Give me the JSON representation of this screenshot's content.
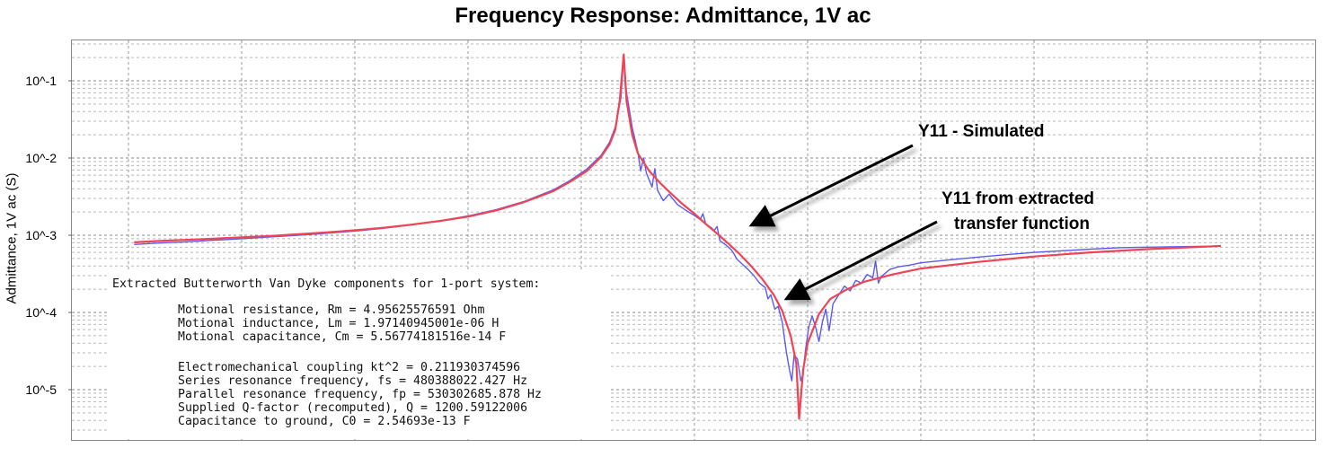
{
  "chart_data": {
    "type": "line",
    "title": "Frequency Response: Admittance, 1V ac",
    "ylabel": "Admittance, 1V ac (S)",
    "xlabel": "",
    "yscale": "log",
    "ylim": [
      4e-06,
      0.25
    ],
    "ytick_labels": [
      "10^-1",
      "10^-2",
      "10^-3",
      "10^-4",
      "10^-5"
    ],
    "ytick_values": [
      0.1,
      0.01,
      0.001,
      0.0001,
      1e-05
    ],
    "grid": true,
    "series": [
      {
        "name": "Y11 - Simulated",
        "color": "#5b5bf0",
        "points": [
          [
            0.1,
            0.00076
          ],
          [
            0.5,
            0.00079
          ],
          [
            1,
            0.00082
          ],
          [
            1.5,
            0.00086
          ],
          [
            2,
            0.0009
          ],
          [
            2.5,
            0.00095
          ],
          [
            3,
            0.001
          ],
          [
            3.5,
            0.00106
          ],
          [
            4,
            0.00113
          ],
          [
            4.5,
            0.00123
          ],
          [
            5,
            0.00136
          ],
          [
            5.5,
            0.00153
          ],
          [
            6,
            0.00178
          ],
          [
            6.5,
            0.00215
          ],
          [
            7,
            0.00275
          ],
          [
            7.5,
            0.00385
          ],
          [
            7.8,
            0.0051
          ],
          [
            8.1,
            0.0072
          ],
          [
            8.35,
            0.0108
          ],
          [
            8.5,
            0.016
          ],
          [
            8.6,
            0.025
          ],
          [
            8.7,
            0.06
          ],
          [
            8.75,
            0.2
          ],
          [
            8.8,
            0.07
          ],
          [
            8.9,
            0.025
          ],
          [
            9,
            0.012
          ],
          [
            9.05,
            0.0068
          ],
          [
            9.1,
            0.01
          ],
          [
            9.15,
            0.0064
          ],
          [
            9.25,
            0.0042
          ],
          [
            9.3,
            0.0073
          ],
          [
            9.35,
            0.0038
          ],
          [
            9.45,
            0.0028
          ],
          [
            9.55,
            0.0034
          ],
          [
            9.7,
            0.0025
          ],
          [
            9.85,
            0.0021
          ],
          [
            10,
            0.0018
          ],
          [
            10.1,
            0.0016
          ],
          [
            10.15,
            0.0019
          ],
          [
            10.2,
            0.0014
          ],
          [
            10.3,
            0.00125
          ],
          [
            10.35,
            0.00115
          ],
          [
            10.4,
            0.0013
          ],
          [
            10.45,
            0.00085
          ],
          [
            10.5,
            0.0008
          ],
          [
            10.55,
            0.00075
          ],
          [
            10.65,
            0.00065
          ],
          [
            10.7,
            0.00057
          ],
          [
            10.75,
            0.00049
          ],
          [
            10.85,
            0.00042
          ],
          [
            10.95,
            0.00036
          ],
          [
            11.05,
            0.0003
          ],
          [
            11.15,
            0.00024
          ],
          [
            11.25,
            0.00021
          ],
          [
            11.3,
            0.00015
          ],
          [
            11.35,
            0.00017
          ],
          [
            11.42,
            0.00011
          ],
          [
            11.48,
            0.00012
          ],
          [
            11.55,
            7.5e-05
          ],
          [
            11.62,
            3.2e-05
          ],
          [
            11.68,
            1.8e-05
          ],
          [
            11.72,
            1.3e-05
          ],
          [
            11.76,
            2.8e-05
          ],
          [
            11.82,
            2.5e-05
          ],
          [
            11.88,
            1.3e-05
          ],
          [
            11.92,
            1.6e-05
          ],
          [
            11.96,
            3.2e-05
          ],
          [
            12.02,
            6.5e-05
          ],
          [
            12.08,
            9e-05
          ],
          [
            12.14,
            6.5e-05
          ],
          [
            12.2,
            4.2e-05
          ],
          [
            12.26,
            7.5e-05
          ],
          [
            12.32,
            0.00011
          ],
          [
            12.38,
            5.8e-05
          ],
          [
            12.45,
            0.00013
          ],
          [
            12.55,
            0.00017
          ],
          [
            12.65,
            0.00022
          ],
          [
            12.75,
            0.00019
          ],
          [
            12.85,
            0.00026
          ],
          [
            12.95,
            0.00024
          ],
          [
            13.05,
            0.00031
          ],
          [
            13.15,
            0.00028
          ],
          [
            13.2,
            0.00046
          ],
          [
            13.25,
            0.00024
          ],
          [
            13.3,
            0.00029
          ],
          [
            13.45,
            0.00036
          ],
          [
            13.6,
            0.00039
          ],
          [
            13.8,
            0.00041
          ],
          [
            14,
            0.00044
          ],
          [
            14.5,
            0.00048
          ],
          [
            15,
            0.00052
          ],
          [
            15.5,
            0.00056
          ],
          [
            16,
            0.0006
          ],
          [
            16.5,
            0.00063
          ],
          [
            17,
            0.00066
          ],
          [
            17.5,
            0.00069
          ],
          [
            18,
            0.0007
          ],
          [
            18.5,
            0.00071
          ],
          [
            19,
            0.00072
          ],
          [
            19.3,
            0.00072
          ]
        ]
      },
      {
        "name": "Y11 from extracted transfer function",
        "color": "#ee4455",
        "points": [
          [
            0.1,
            0.00081
          ],
          [
            0.5,
            0.00084
          ],
          [
            1,
            0.00087
          ],
          [
            1.5,
            0.0009
          ],
          [
            2,
            0.00094
          ],
          [
            2.5,
            0.00098
          ],
          [
            3,
            0.00103
          ],
          [
            3.5,
            0.00109
          ],
          [
            4,
            0.00116
          ],
          [
            4.5,
            0.00125
          ],
          [
            5,
            0.00137
          ],
          [
            5.5,
            0.00153
          ],
          [
            6,
            0.00174
          ],
          [
            6.5,
            0.0021
          ],
          [
            7,
            0.0027
          ],
          [
            7.5,
            0.0037
          ],
          [
            7.8,
            0.0049
          ],
          [
            8.1,
            0.0068
          ],
          [
            8.35,
            0.0103
          ],
          [
            8.5,
            0.015
          ],
          [
            8.6,
            0.023
          ],
          [
            8.68,
            0.055
          ],
          [
            8.75,
            0.22
          ],
          [
            8.8,
            0.055
          ],
          [
            8.9,
            0.02
          ],
          [
            9,
            0.0115
          ],
          [
            9.2,
            0.0068
          ],
          [
            9.4,
            0.0047
          ],
          [
            9.6,
            0.0034
          ],
          [
            9.8,
            0.0025
          ],
          [
            10,
            0.0019
          ],
          [
            10.2,
            0.0014
          ],
          [
            10.4,
            0.00105
          ],
          [
            10.6,
            0.00078
          ],
          [
            10.8,
            0.00057
          ],
          [
            11,
            0.0004
          ],
          [
            11.2,
            0.00027
          ],
          [
            11.4,
            0.00017
          ],
          [
            11.55,
            0.000105
          ],
          [
            11.7,
            5e-05
          ],
          [
            11.8,
            2.2e-05
          ],
          [
            11.85,
            4.2e-06
          ],
          [
            11.92,
            1.8e-05
          ],
          [
            12,
            4e-05
          ],
          [
            12.2,
            9.5e-05
          ],
          [
            12.4,
            0.00015
          ],
          [
            12.7,
            0.0002
          ],
          [
            13,
            0.00025
          ],
          [
            13.5,
            0.00031
          ],
          [
            14,
            0.00037
          ],
          [
            15,
            0.00045
          ],
          [
            16,
            0.00053
          ],
          [
            17,
            0.0006
          ],
          [
            18,
            0.00066
          ],
          [
            19,
            0.00071
          ],
          [
            19.3,
            0.00073
          ]
        ]
      }
    ],
    "annotations": [
      {
        "text": "Y11 - Simulated",
        "points_to_series": 0
      },
      {
        "lines": [
          "Y11 from extracted",
          "transfer function"
        ],
        "points_to_series": 1
      }
    ]
  },
  "bvd_text": {
    "heading": "Extracted Butterworth Van Dyke components for 1-port system:",
    "motional": [
      "Motional resistance, Rm = 4.95625576591 Ohm",
      "Motional inductance, Lm = 1.97140945001e-06 H",
      "Motional capacitance, Cm = 5.56774181516e-14 F"
    ],
    "params": [
      "Electromechanical coupling kt^2 = 0.211930374596",
      "Series resonance frequency, fs = 480388022.427 Hz",
      "Parallel resonance frequency, fp = 530302685.878 Hz",
      "Supplied Q-factor (recomputed), Q = 1200.59122006",
      "Capacitance to ground, C0 = 2.54693e-13 F"
    ]
  }
}
